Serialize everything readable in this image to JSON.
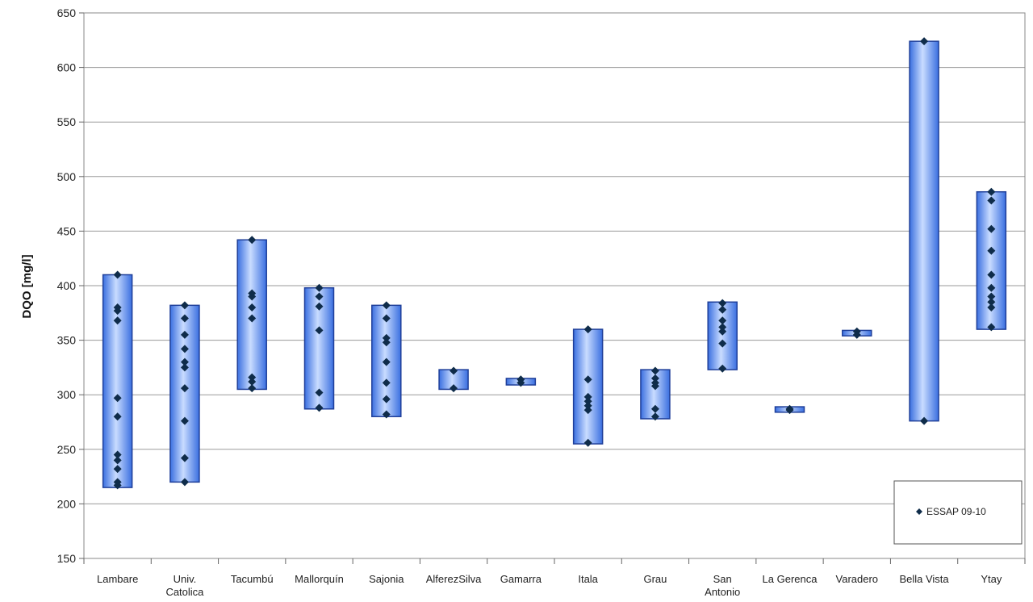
{
  "chart_data": {
    "type": "range-bar-with-points",
    "ylabel": "DQO [mg/l]",
    "xlabel": "",
    "ylim": [
      150,
      650
    ],
    "yticks": [
      150,
      200,
      250,
      300,
      350,
      400,
      450,
      500,
      550,
      600,
      650
    ],
    "grid": true,
    "legend": {
      "placement": "bottom-right",
      "entries": [
        "ESSAP 09-10"
      ]
    },
    "colors": {
      "bar_light": "#c9dcff",
      "bar_dark": "#3a6fe0",
      "bar_edge": "#1f3f99",
      "marker": "#0f2c4a",
      "grid": "#9a9a9a"
    },
    "categories": [
      {
        "label": [
          "Lambare"
        ],
        "min": 215,
        "max": 410,
        "points": [
          410,
          380,
          377,
          368,
          297,
          280,
          245,
          240,
          232,
          220,
          217
        ]
      },
      {
        "label": [
          "Univ.",
          "Catolica"
        ],
        "min": 220,
        "max": 382,
        "points": [
          382,
          370,
          355,
          342,
          330,
          325,
          306,
          276,
          242,
          220
        ]
      },
      {
        "label": [
          "Tacumbú"
        ],
        "min": 305,
        "max": 442,
        "points": [
          442,
          393,
          390,
          380,
          370,
          316,
          312,
          306
        ]
      },
      {
        "label": [
          "Mallorquín"
        ],
        "min": 287,
        "max": 398,
        "points": [
          398,
          390,
          381,
          359,
          302,
          288
        ]
      },
      {
        "label": [
          "Sajonia"
        ],
        "min": 280,
        "max": 382,
        "points": [
          382,
          370,
          352,
          348,
          330,
          311,
          296,
          282
        ]
      },
      {
        "label": [
          "AlferezSilva"
        ],
        "min": 305,
        "max": 323,
        "points": [
          322,
          306
        ]
      },
      {
        "label": [
          "Gamarra"
        ],
        "min": 309,
        "max": 315,
        "points": [
          314,
          311
        ]
      },
      {
        "label": [
          "Itala"
        ],
        "min": 255,
        "max": 360,
        "points": [
          360,
          314,
          298,
          294,
          290,
          286,
          256
        ]
      },
      {
        "label": [
          "Grau"
        ],
        "min": 278,
        "max": 323,
        "points": [
          322,
          315,
          311,
          308,
          287,
          280
        ]
      },
      {
        "label": [
          "San",
          "Antonio"
        ],
        "min": 323,
        "max": 385,
        "points": [
          384,
          378,
          368,
          362,
          358,
          347,
          324
        ]
      },
      {
        "label": [
          "La Gerenca"
        ],
        "min": 284,
        "max": 289,
        "points": [
          287,
          286
        ]
      },
      {
        "label": [
          "Varadero"
        ],
        "min": 354,
        "max": 359,
        "points": [
          358,
          355
        ]
      },
      {
        "label": [
          "Bella Vista"
        ],
        "min": 276,
        "max": 624,
        "points": [
          624,
          276
        ]
      },
      {
        "label": [
          "Ytay"
        ],
        "min": 360,
        "max": 486,
        "points": [
          486,
          478,
          452,
          432,
          410,
          398,
          390,
          385,
          380,
          362
        ]
      }
    ]
  }
}
